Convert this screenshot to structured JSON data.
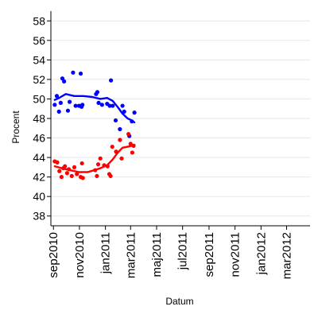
{
  "chart_data": {
    "type": "scatter",
    "title": "",
    "xlabel": "Datum",
    "ylabel": "Procent",
    "ylim": [
      37,
      59
    ],
    "xlim": [
      "2010-08-26",
      "2012-04-25"
    ],
    "yticks": [
      38,
      40,
      42,
      44,
      46,
      48,
      50,
      52,
      54,
      56,
      58
    ],
    "xticks": [
      {
        "label": "sep2010",
        "date": "2010-09-01"
      },
      {
        "label": "nov2010",
        "date": "2010-11-01"
      },
      {
        "label": "jan2011",
        "date": "2011-01-01"
      },
      {
        "label": "mar2011",
        "date": "2011-03-01"
      },
      {
        "label": "maj2011",
        "date": "2011-05-01"
      },
      {
        "label": "jul2011",
        "date": "2011-07-01"
      },
      {
        "label": "sep2011",
        "date": "2011-09-01"
      },
      {
        "label": "nov2011",
        "date": "2011-11-01"
      },
      {
        "label": "jan2012",
        "date": "2012-01-01"
      },
      {
        "label": "mar2012",
        "date": "2012-03-01"
      }
    ],
    "grid": true,
    "legend": "none",
    "series": [
      {
        "color": "#0000ff",
        "points": [
          {
            "x": "2010-09-04",
            "y": 49.4
          },
          {
            "x": "2010-09-09",
            "y": 50.3
          },
          {
            "x": "2010-09-14",
            "y": 48.7
          },
          {
            "x": "2010-09-18",
            "y": 49.6
          },
          {
            "x": "2010-09-22",
            "y": 52.1
          },
          {
            "x": "2010-09-26",
            "y": 51.8
          },
          {
            "x": "2010-10-05",
            "y": 48.8
          },
          {
            "x": "2010-10-09",
            "y": 49.7
          },
          {
            "x": "2010-10-17",
            "y": 52.7
          },
          {
            "x": "2010-10-23",
            "y": 49.3
          },
          {
            "x": "2010-10-31",
            "y": 49.3
          },
          {
            "x": "2010-11-04",
            "y": 52.6
          },
          {
            "x": "2010-11-06",
            "y": 49.2
          },
          {
            "x": "2010-11-08",
            "y": 49.4
          },
          {
            "x": "2010-12-10",
            "y": 50.5
          },
          {
            "x": "2010-12-13",
            "y": 50.7
          },
          {
            "x": "2010-12-16",
            "y": 49.6
          },
          {
            "x": "2010-12-24",
            "y": 49.4
          },
          {
            "x": "2011-01-05",
            "y": 49.5
          },
          {
            "x": "2011-01-11",
            "y": 49.3
          },
          {
            "x": "2011-01-14",
            "y": 51.9
          },
          {
            "x": "2011-01-18",
            "y": 49.3
          },
          {
            "x": "2011-01-25",
            "y": 47.8
          },
          {
            "x": "2011-02-04",
            "y": 46.9
          },
          {
            "x": "2011-02-10",
            "y": 49.3
          },
          {
            "x": "2011-02-14",
            "y": 48.7
          },
          {
            "x": "2011-02-26",
            "y": 46.2
          },
          {
            "x": "2011-03-04",
            "y": 47.7
          },
          {
            "x": "2011-03-10",
            "y": 48.6
          }
        ],
        "trend": [
          {
            "x": "2010-09-04",
            "y": 49.9
          },
          {
            "x": "2010-09-14",
            "y": 50.1
          },
          {
            "x": "2010-09-30",
            "y": 50.5
          },
          {
            "x": "2010-10-20",
            "y": 50.3
          },
          {
            "x": "2010-11-10",
            "y": 50.3
          },
          {
            "x": "2010-12-01",
            "y": 50.2
          },
          {
            "x": "2010-12-20",
            "y": 50.0
          },
          {
            "x": "2011-01-05",
            "y": 50.1
          },
          {
            "x": "2011-01-18",
            "y": 49.8
          },
          {
            "x": "2011-01-31",
            "y": 49.1
          },
          {
            "x": "2011-02-10",
            "y": 48.5
          },
          {
            "x": "2011-02-22",
            "y": 48.0
          },
          {
            "x": "2011-03-04",
            "y": 47.8
          },
          {
            "x": "2011-03-10",
            "y": 47.6
          }
        ]
      },
      {
        "color": "#ff0000",
        "points": [
          {
            "x": "2010-09-04",
            "y": 43.6
          },
          {
            "x": "2010-09-10",
            "y": 43.5
          },
          {
            "x": "2010-09-15",
            "y": 42.6
          },
          {
            "x": "2010-09-20",
            "y": 42.0
          },
          {
            "x": "2010-09-24",
            "y": 42.9
          },
          {
            "x": "2010-09-28",
            "y": 43.1
          },
          {
            "x": "2010-10-03",
            "y": 42.4
          },
          {
            "x": "2010-10-07",
            "y": 42.8
          },
          {
            "x": "2010-10-14",
            "y": 42.1
          },
          {
            "x": "2010-10-20",
            "y": 43.0
          },
          {
            "x": "2010-10-26",
            "y": 42.3
          },
          {
            "x": "2010-11-04",
            "y": 42.0
          },
          {
            "x": "2010-11-07",
            "y": 43.4
          },
          {
            "x": "2010-11-09",
            "y": 41.9
          },
          {
            "x": "2010-12-08",
            "y": 42.7
          },
          {
            "x": "2010-12-12",
            "y": 42.1
          },
          {
            "x": "2010-12-15",
            "y": 43.3
          },
          {
            "x": "2010-12-20",
            "y": 43.9
          },
          {
            "x": "2010-12-29",
            "y": 43.2
          },
          {
            "x": "2011-01-06",
            "y": 43.1
          },
          {
            "x": "2011-01-10",
            "y": 42.3
          },
          {
            "x": "2011-01-13",
            "y": 42.1
          },
          {
            "x": "2011-01-17",
            "y": 45.1
          },
          {
            "x": "2011-01-26",
            "y": 44.6
          },
          {
            "x": "2011-02-04",
            "y": 45.8
          },
          {
            "x": "2011-02-08",
            "y": 43.9
          },
          {
            "x": "2011-02-24",
            "y": 46.4
          },
          {
            "x": "2011-03-01",
            "y": 45.4
          },
          {
            "x": "2011-03-05",
            "y": 44.5
          },
          {
            "x": "2011-03-08",
            "y": 45.2
          }
        ],
        "trend": [
          {
            "x": "2010-09-04",
            "y": 43.1
          },
          {
            "x": "2010-09-20",
            "y": 42.9
          },
          {
            "x": "2010-10-10",
            "y": 42.7
          },
          {
            "x": "2010-10-31",
            "y": 42.5
          },
          {
            "x": "2010-11-20",
            "y": 42.5
          },
          {
            "x": "2010-12-06",
            "y": 42.7
          },
          {
            "x": "2010-12-20",
            "y": 42.9
          },
          {
            "x": "2011-01-05",
            "y": 43.2
          },
          {
            "x": "2011-01-18",
            "y": 43.8
          },
          {
            "x": "2011-01-30",
            "y": 44.5
          },
          {
            "x": "2011-02-10",
            "y": 45.0
          },
          {
            "x": "2011-02-22",
            "y": 45.1
          },
          {
            "x": "2011-03-04",
            "y": 45.2
          },
          {
            "x": "2011-03-10",
            "y": 45.3
          }
        ]
      }
    ]
  }
}
